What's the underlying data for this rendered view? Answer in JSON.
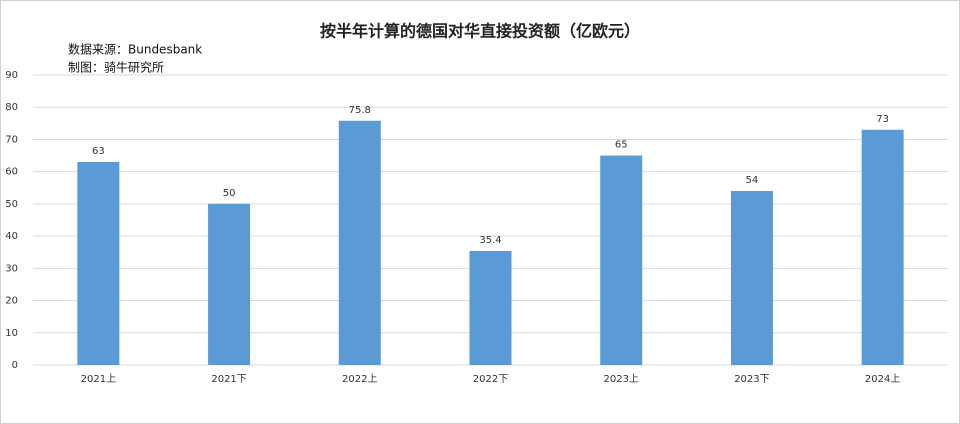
{
  "chart_data": {
    "type": "bar",
    "title": "按半年计算的德国对华直接投资额（亿欧元）",
    "notes": [
      "数据来源：Bundesbank",
      "制图：骑牛研究所"
    ],
    "categories": [
      "2021上",
      "2021下",
      "2022上",
      "2022下",
      "2023上",
      "2023下",
      "2024上"
    ],
    "values": [
      63,
      50,
      75.8,
      35.4,
      65,
      54,
      73
    ],
    "color": "#5b9bd5",
    "ylim": [
      0,
      90
    ],
    "yticks": [
      0,
      10,
      20,
      30,
      40,
      50,
      60,
      70,
      80,
      90
    ],
    "grid": true
  }
}
